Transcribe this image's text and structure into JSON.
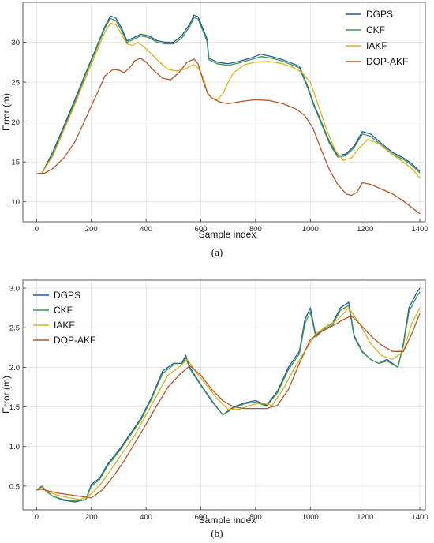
{
  "chart_data": [
    {
      "type": "line",
      "caption": "(a)",
      "xlabel": "Sample index",
      "ylabel": "Error (m)",
      "xlim": [
        -50,
        1420
      ],
      "ylim": [
        7.5,
        35
      ],
      "xticks": [
        0,
        200,
        400,
        600,
        800,
        1000,
        1200,
        1400
      ],
      "yticks": [
        10,
        15,
        20,
        25,
        30
      ],
      "grid": true,
      "legend": "top-right",
      "series": [
        {
          "name": "DGPS",
          "color": "#2456a6",
          "x": [
            0,
            20,
            60,
            100,
            140,
            180,
            220,
            250,
            270,
            290,
            310,
            330,
            350,
            380,
            410,
            440,
            470,
            500,
            530,
            560,
            575,
            590,
            610,
            622,
            630,
            660,
            700,
            740,
            780,
            820,
            860,
            900,
            930,
            960,
            990,
            1010,
            1040,
            1070,
            1100,
            1130,
            1160,
            1190,
            1220,
            1260,
            1300,
            1340,
            1370,
            1400
          ],
          "y": [
            13.5,
            13.6,
            16.3,
            19.5,
            22.8,
            26.2,
            29.5,
            32,
            33.3,
            33,
            31.8,
            30.2,
            30.5,
            31,
            30.8,
            30.2,
            30,
            30,
            30.8,
            32.3,
            33.4,
            33.2,
            31.5,
            30.5,
            28,
            27.5,
            27.3,
            27.6,
            28,
            28.5,
            28.2,
            27.8,
            27.4,
            27,
            24.5,
            22.5,
            20,
            17.5,
            15.8,
            16,
            17,
            18.8,
            18.5,
            17.3,
            16.2,
            15.5,
            14.8,
            13.8
          ]
        },
        {
          "name": "CKF",
          "color": "#3a9a4a",
          "x": [
            20,
            60,
            100,
            140,
            180,
            220,
            250,
            270,
            290,
            310,
            330,
            350,
            380,
            410,
            440,
            470,
            500,
            530,
            560,
            575,
            590,
            610,
            622,
            630,
            660,
            700,
            740,
            780,
            820,
            860,
            900,
            930,
            960,
            990,
            1010,
            1040,
            1070,
            1100,
            1130,
            1160,
            1190,
            1220,
            1260,
            1300,
            1340,
            1370,
            1400
          ],
          "y": [
            13.6,
            16,
            19.2,
            22.5,
            26,
            29.3,
            31.8,
            33,
            32.7,
            31.5,
            30,
            30.3,
            30.8,
            30.6,
            30,
            29.8,
            29.8,
            30.5,
            32,
            33.1,
            32.9,
            31.2,
            30.2,
            27.8,
            27.3,
            27.1,
            27.4,
            27.8,
            28.2,
            28,
            27.6,
            27.2,
            26.8,
            24.3,
            22.3,
            19.8,
            17.3,
            15.6,
            15.8,
            16.8,
            18.5,
            18.2,
            17.1,
            16,
            15.3,
            14.6,
            13.6
          ]
        },
        {
          "name": "IAKF",
          "color": "#e0b020",
          "x": [
            20,
            60,
            100,
            140,
            180,
            220,
            250,
            270,
            290,
            310,
            330,
            350,
            370,
            390,
            420,
            450,
            480,
            510,
            540,
            560,
            575,
            590,
            610,
            625,
            640,
            660,
            680,
            700,
            720,
            760,
            800,
            850,
            900,
            940,
            970,
            1000,
            1030,
            1060,
            1090,
            1120,
            1150,
            1180,
            1210,
            1250,
            1290,
            1330,
            1370,
            1400
          ],
          "y": [
            13.6,
            15.8,
            19,
            22.2,
            25.6,
            28.9,
            31.3,
            32.4,
            32.2,
            31,
            29.8,
            29.6,
            30,
            29.5,
            28.5,
            27.5,
            26.6,
            26.4,
            26.6,
            27,
            27.2,
            26.8,
            25.5,
            23.5,
            23,
            22.8,
            23.5,
            25,
            26.2,
            27.2,
            27.5,
            27.6,
            27.3,
            26.8,
            26.2,
            25,
            22,
            19,
            16.5,
            15.2,
            15.5,
            16.8,
            17.8,
            17.3,
            16.2,
            15.2,
            14.2,
            13
          ]
        },
        {
          "name": "DOP-AKF",
          "color": "#b5562a",
          "x": [
            0,
            30,
            60,
            100,
            140,
            180,
            220,
            250,
            280,
            300,
            320,
            340,
            360,
            380,
            400,
            430,
            460,
            490,
            520,
            550,
            575,
            590,
            610,
            625,
            640,
            670,
            700,
            750,
            800,
            850,
            900,
            950,
            980,
            1010,
            1040,
            1070,
            1100,
            1130,
            1150,
            1170,
            1190,
            1220,
            1260,
            1300,
            1340,
            1370,
            1400
          ],
          "y": [
            13.5,
            13.6,
            14.2,
            15.5,
            17.5,
            20.5,
            23.5,
            25.8,
            26.6,
            26.5,
            26.2,
            26.8,
            27.7,
            28,
            27.5,
            26.4,
            25.5,
            25.3,
            26.2,
            27.5,
            27.9,
            27.3,
            25,
            23.6,
            23,
            22.5,
            22.3,
            22.6,
            22.8,
            22.7,
            22.3,
            21.6,
            20.8,
            19.2,
            16.5,
            14,
            12.2,
            11,
            10.8,
            11.2,
            12.4,
            12.2,
            11.6,
            11,
            10.1,
            9.3,
            8.5
          ]
        }
      ]
    },
    {
      "type": "line",
      "caption": "(b)",
      "xlabel": "Sample index",
      "ylabel": "Error (m)",
      "xlim": [
        -50,
        1420
      ],
      "ylim": [
        0.2,
        3.1
      ],
      "xticks": [
        0,
        200,
        400,
        600,
        800,
        1000,
        1200,
        1400
      ],
      "yticks": [
        0.5,
        1.0,
        1.5,
        2.0,
        2.5,
        3.0
      ],
      "yticklabels": [
        "0.5",
        "1.0",
        "1.5",
        "2.0",
        "2.5",
        "3.0"
      ],
      "grid": true,
      "legend": "top-left",
      "series": [
        {
          "name": "DGPS",
          "color": "#2456a6",
          "x": [
            0,
            20,
            40,
            60,
            100,
            140,
            180,
            200,
            230,
            260,
            300,
            340,
            380,
            420,
            460,
            500,
            530,
            545,
            560,
            600,
            640,
            680,
            700,
            720,
            760,
            800,
            840,
            880,
            920,
            960,
            980,
            1000,
            1020,
            1050,
            1080,
            1110,
            1140,
            1160,
            1190,
            1220,
            1250,
            1280,
            1300,
            1320,
            1340,
            1360,
            1390,
            1400
          ],
          "y": [
            0.45,
            0.5,
            0.42,
            0.37,
            0.32,
            0.3,
            0.33,
            0.52,
            0.6,
            0.78,
            0.95,
            1.15,
            1.35,
            1.62,
            1.95,
            2.05,
            2.05,
            2.15,
            2.0,
            1.78,
            1.58,
            1.4,
            1.45,
            1.5,
            1.55,
            1.58,
            1.52,
            1.7,
            2.0,
            2.2,
            2.6,
            2.75,
            2.4,
            2.5,
            2.55,
            2.75,
            2.82,
            2.4,
            2.2,
            2.1,
            2.05,
            2.1,
            2.05,
            2.0,
            2.3,
            2.75,
            2.95,
            3.0
          ]
        },
        {
          "name": "CKF",
          "color": "#3a9a4a",
          "x": [
            0,
            20,
            40,
            60,
            100,
            140,
            180,
            200,
            230,
            260,
            300,
            340,
            380,
            420,
            460,
            500,
            530,
            545,
            560,
            600,
            640,
            680,
            700,
            720,
            760,
            800,
            840,
            880,
            920,
            960,
            980,
            1000,
            1020,
            1050,
            1080,
            1110,
            1140,
            1160,
            1190,
            1220,
            1250,
            1280,
            1300,
            1320,
            1340,
            1360,
            1390,
            1400
          ],
          "y": [
            0.45,
            0.49,
            0.42,
            0.37,
            0.33,
            0.31,
            0.33,
            0.5,
            0.58,
            0.76,
            0.93,
            1.13,
            1.33,
            1.6,
            1.92,
            2.03,
            2.03,
            2.12,
            1.98,
            1.77,
            1.57,
            1.4,
            1.44,
            1.49,
            1.54,
            1.56,
            1.51,
            1.68,
            1.97,
            2.17,
            2.55,
            2.7,
            2.38,
            2.48,
            2.53,
            2.72,
            2.78,
            2.38,
            2.19,
            2.1,
            2.05,
            2.08,
            2.04,
            2.0,
            2.28,
            2.7,
            2.9,
            2.95
          ]
        },
        {
          "name": "IAKF",
          "color": "#e0b020",
          "x": [
            0,
            20,
            40,
            80,
            120,
            160,
            200,
            240,
            280,
            320,
            360,
            400,
            440,
            480,
            520,
            550,
            580,
            620,
            660,
            700,
            740,
            780,
            820,
            860,
            900,
            940,
            980,
            1020,
            1060,
            1100,
            1140,
            1180,
            1220,
            1260,
            1300,
            1340,
            1370,
            1400
          ],
          "y": [
            0.45,
            0.48,
            0.43,
            0.38,
            0.35,
            0.33,
            0.4,
            0.55,
            0.75,
            0.95,
            1.15,
            1.4,
            1.65,
            1.9,
            2.0,
            2.1,
            1.95,
            1.78,
            1.6,
            1.47,
            1.47,
            1.52,
            1.55,
            1.52,
            1.72,
            1.98,
            2.2,
            2.42,
            2.52,
            2.6,
            2.75,
            2.55,
            2.3,
            2.15,
            2.1,
            2.2,
            2.55,
            2.75
          ]
        },
        {
          "name": "DOP-AKF",
          "color": "#b5562a",
          "x": [
            0,
            20,
            40,
            80,
            120,
            160,
            200,
            240,
            280,
            320,
            360,
            400,
            440,
            480,
            520,
            560,
            600,
            640,
            680,
            720,
            760,
            800,
            840,
            880,
            920,
            960,
            1000,
            1040,
            1080,
            1120,
            1150,
            1180,
            1220,
            1260,
            1300,
            1340,
            1370,
            1400
          ],
          "y": [
            0.45,
            0.46,
            0.44,
            0.41,
            0.39,
            0.37,
            0.35,
            0.45,
            0.62,
            0.82,
            1.05,
            1.28,
            1.52,
            1.75,
            1.9,
            2.02,
            1.9,
            1.72,
            1.58,
            1.5,
            1.48,
            1.48,
            1.48,
            1.52,
            1.72,
            2.05,
            2.35,
            2.45,
            2.52,
            2.6,
            2.65,
            2.55,
            2.4,
            2.28,
            2.2,
            2.2,
            2.42,
            2.68
          ]
        }
      ]
    }
  ]
}
